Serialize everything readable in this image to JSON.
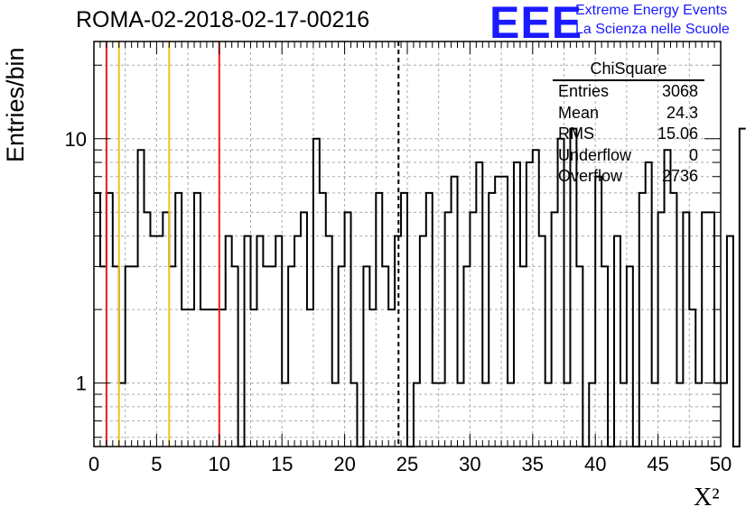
{
  "chart_data": {
    "type": "step-histogram",
    "title": "ROMA-02-2018-02-17-00216",
    "xlabel": "X²",
    "ylabel": "Entries/bin",
    "xlim": [
      0,
      50
    ],
    "ylim": [
      0.55,
      25
    ],
    "yscale": "log",
    "grid": true,
    "bin_width": 0.5,
    "x_ticks": [
      "0",
      "5",
      "10",
      "15",
      "20",
      "25",
      "30",
      "35",
      "40",
      "45",
      "50"
    ],
    "y_ticks": [
      "1",
      "10"
    ],
    "counts": [
      6,
      3,
      6,
      3,
      1,
      3,
      3,
      9,
      5,
      4,
      4,
      5,
      3,
      6,
      2,
      2,
      6,
      2,
      2,
      2,
      2,
      4,
      3,
      0,
      4,
      2,
      4,
      3,
      3,
      4,
      1,
      3,
      4,
      5,
      2,
      10,
      6,
      4,
      1,
      3,
      5,
      1,
      0,
      3,
      2,
      6,
      3,
      2,
      4,
      6,
      0,
      1,
      4,
      6,
      1,
      1,
      5,
      7,
      1,
      3,
      5,
      8,
      1,
      6,
      7,
      7,
      1,
      8,
      3,
      8,
      9,
      4,
      1,
      5,
      10,
      1,
      11,
      3,
      0,
      1,
      7,
      3,
      0,
      4,
      1,
      3,
      0,
      6,
      8,
      1,
      5,
      9,
      6,
      1,
      5,
      2,
      1,
      5,
      5,
      1,
      1,
      4,
      0,
      11
    ],
    "vertical_lines": [
      {
        "x": 1,
        "color": "#e8201a",
        "style": "solid"
      },
      {
        "x": 2,
        "color": "#f3c21a",
        "style": "solid"
      },
      {
        "x": 6,
        "color": "#f3c21a",
        "style": "solid"
      },
      {
        "x": 10,
        "color": "#e8201a",
        "style": "solid"
      },
      {
        "x": 24.3,
        "color": "#000000",
        "style": "dashed"
      }
    ]
  },
  "logo": {
    "mark": "EEE",
    "line1": "Extreme Energy Events",
    "line2": "La Scienza nelle Scuole",
    "color": "#1a1aff"
  },
  "stats_box": {
    "title": "ChiSquare",
    "rows": [
      {
        "label": "Entries",
        "value": "3068"
      },
      {
        "label": "Mean",
        "value": "24.3"
      },
      {
        "label": "RMS",
        "value": "15.06"
      },
      {
        "label": "Underflow",
        "value": "0"
      },
      {
        "label": "Overflow",
        "value": "2736"
      }
    ]
  }
}
